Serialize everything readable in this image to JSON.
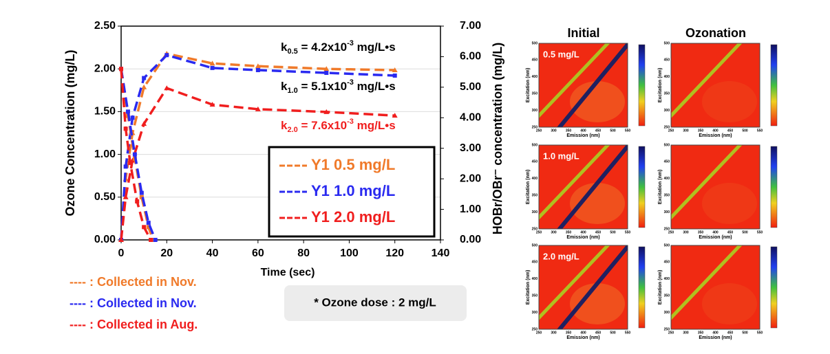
{
  "chart_data": {
    "type": "line",
    "xlabel": "Time (sec)",
    "ylabel": "Ozone Concentration (mg/L)",
    "y2label": "HOBr/OBr⁻ concentration (mg/L)",
    "xlim": [
      0,
      140
    ],
    "xticks": [
      0,
      20,
      40,
      60,
      80,
      100,
      120,
      140
    ],
    "ylim": [
      0,
      2.5
    ],
    "yticks": [
      {
        "value": 0,
        "label": "0.00"
      },
      {
        "value": 0.5,
        "label": "0.50"
      },
      {
        "value": 1,
        "label": "1.00"
      },
      {
        "value": 1.5,
        "label": "1.50"
      },
      {
        "value": 2,
        "label": "2.00"
      },
      {
        "value": 2.5,
        "label": "2.50"
      }
    ],
    "y2lim": [
      0,
      7
    ],
    "y2ticks": [
      {
        "value": 0,
        "label": "0.00"
      },
      {
        "value": 1,
        "label": "1.00"
      },
      {
        "value": 2,
        "label": "2.00"
      },
      {
        "value": 3,
        "label": "3.00"
      },
      {
        "value": 4,
        "label": "4.00"
      },
      {
        "value": 5,
        "label": "5.00"
      },
      {
        "value": 6,
        "label": "6.00"
      },
      {
        "value": 7,
        "label": "7.00"
      }
    ],
    "grid": true,
    "series": [
      {
        "name": "Y1 0.5 mg/L",
        "color": "#f07a2a",
        "axis": "y2",
        "marker": "triangle",
        "x": [
          0,
          2,
          5,
          10,
          20,
          40,
          60,
          90,
          120
        ],
        "values": [
          0,
          2.0,
          3.5,
          5.0,
          6.1,
          5.78,
          5.69,
          5.6,
          5.56
        ]
      },
      {
        "name": "Y1 1.0 mg/L",
        "color": "#2a2af0",
        "axis": "y2",
        "marker": "square",
        "x": [
          0,
          2,
          5,
          10,
          20,
          40,
          60,
          90,
          120
        ],
        "values": [
          0,
          2.4,
          4.0,
          5.3,
          6.05,
          5.63,
          5.56,
          5.47,
          5.38
        ]
      },
      {
        "name": "Y1 2.0 mg/L",
        "color": "#f01e1e",
        "axis": "y2",
        "marker": "triangle",
        "x": [
          0,
          2,
          5,
          10,
          20,
          40,
          60,
          90,
          120
        ],
        "values": [
          0,
          1.4,
          2.6,
          3.8,
          4.97,
          4.43,
          4.28,
          4.19,
          4.07
        ]
      },
      {
        "color": "#f07a2a",
        "axis": "y",
        "marker": "square",
        "x": [
          0,
          3,
          6,
          9,
          12,
          14
        ],
        "values": [
          2.0,
          1.45,
          0.95,
          0.5,
          0.15,
          0
        ]
      },
      {
        "color": "#2a2af0",
        "axis": "y",
        "marker": "square",
        "x": [
          0,
          3,
          6,
          9,
          12,
          15
        ],
        "values": [
          2.0,
          1.5,
          1.0,
          0.55,
          0.2,
          0
        ]
      },
      {
        "color": "#f01e1e",
        "axis": "y",
        "marker": "square",
        "x": [
          0,
          2,
          4,
          7,
          10,
          13
        ],
        "values": [
          2.0,
          1.3,
          0.9,
          0.45,
          0.15,
          0
        ]
      }
    ],
    "annotations": [
      {
        "base": "k",
        "sub": "0.5",
        "text": " = 4.2x10",
        "sup": "-3",
        "unit": " mg/L•s",
        "color": "#000000"
      },
      {
        "base": "k",
        "sub": "1.0",
        "text": " = 5.1x10",
        "sup": "-3",
        "unit": " mg/L•s",
        "color": "#000000"
      },
      {
        "base": "k",
        "sub": "2.0",
        "text": " = 7.6x10",
        "sup": "-3",
        "unit": " mg/L•s",
        "color": "#f01e1e"
      }
    ],
    "notes": [
      {
        "text": "---- : Collected in Nov.",
        "color": "#f07a2a"
      },
      {
        "text": "---- : Collected in Nov.",
        "color": "#2a2af0"
      },
      {
        "text": "---- : Collected in Aug.",
        "color": "#f01e1e"
      }
    ],
    "dose_note": "* Ozone dose : 2 mg/L"
  },
  "eem": {
    "columns": [
      "Initial",
      "Ozonation"
    ],
    "rows": [
      "0.5 mg/L",
      "1.0 mg/L",
      "2.0 mg/L"
    ],
    "xlabel": "Emission (nm)",
    "ylabel": "Excitation (nm)",
    "xticks": [
      250,
      300,
      350,
      400,
      450,
      500,
      550
    ],
    "yticks": [
      250,
      300,
      350,
      400,
      450,
      500
    ]
  }
}
